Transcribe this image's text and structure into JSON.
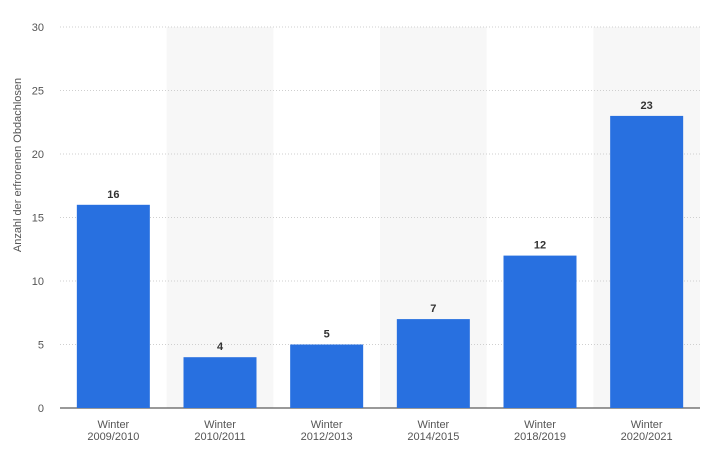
{
  "chart_data": {
    "type": "bar",
    "y_label": "Anzahl der erfrorenen Obdachlosen",
    "categories": [
      "Winter 2009/2010",
      "Winter 2010/2011",
      "Winter 2012/2013",
      "Winter 2014/2015",
      "Winter 2018/2019",
      "Winter 2020/2021"
    ],
    "values": [
      16,
      4,
      5,
      7,
      12,
      23
    ],
    "color": "#2870e0",
    "ylim": [
      0,
      30
    ],
    "yticks": [
      0,
      5,
      10,
      15,
      20,
      25,
      30
    ],
    "grid": true
  }
}
